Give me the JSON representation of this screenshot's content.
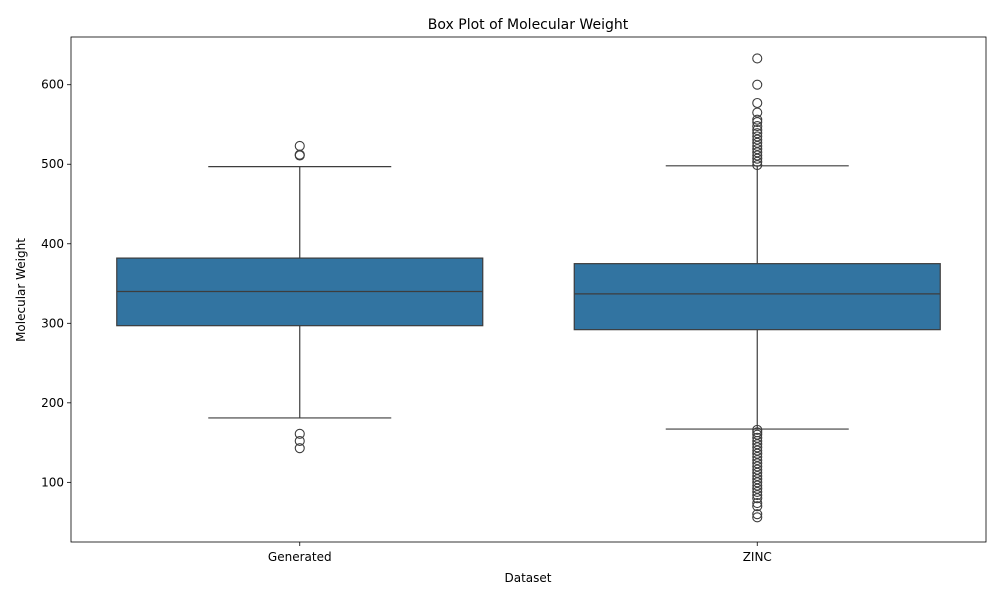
{
  "chart_data": {
    "type": "box",
    "title": "Box Plot of Molecular Weight",
    "xlabel": "Dataset",
    "ylabel": "Molecular Weight",
    "categories": [
      "Generated",
      "ZINC"
    ],
    "ylim": [
      25,
      660
    ],
    "yticks": [
      100,
      200,
      300,
      400,
      500,
      600
    ],
    "grid": false,
    "box_color": "#3274a1",
    "line_color": "#3d3d3d",
    "boxes": [
      {
        "name": "Generated",
        "whisker_low": 181,
        "q1": 297,
        "median": 340,
        "q3": 382,
        "whisker_high": 497,
        "outliers": [
          143,
          152,
          161,
          511,
          512,
          523
        ]
      },
      {
        "name": "ZINC",
        "whisker_low": 167,
        "q1": 292,
        "median": 337,
        "q3": 375,
        "whisker_high": 498,
        "outliers": [
          56,
          60,
          70,
          74,
          80,
          84,
          88,
          92,
          96,
          100,
          104,
          108,
          112,
          116,
          120,
          124,
          128,
          132,
          136,
          140,
          144,
          148,
          152,
          156,
          160,
          163,
          166,
          499,
          503,
          507,
          511,
          515,
          519,
          523,
          527,
          531,
          535,
          539,
          543,
          548,
          553,
          556,
          565,
          577,
          600,
          633
        ]
      }
    ]
  }
}
